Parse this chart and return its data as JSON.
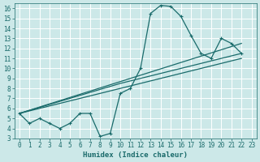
{
  "xlabel": "Humidex (Indice chaleur)",
  "bg_color": "#cce8e8",
  "grid_color": "#ffffff",
  "line_color": "#1a6b6b",
  "xlim": [
    -0.5,
    23.5
  ],
  "ylim": [
    3,
    16.5
  ],
  "xticks": [
    0,
    1,
    2,
    3,
    4,
    5,
    6,
    7,
    8,
    9,
    10,
    11,
    12,
    13,
    14,
    15,
    16,
    17,
    18,
    19,
    20,
    21,
    22,
    23
  ],
  "yticks": [
    3,
    4,
    5,
    6,
    7,
    8,
    9,
    10,
    11,
    12,
    13,
    14,
    15,
    16
  ],
  "curve_main_x": [
    0,
    1,
    2,
    3,
    4,
    5,
    6,
    7,
    8,
    9,
    10,
    11,
    12,
    13,
    14,
    15,
    16,
    17,
    18,
    19,
    20,
    21,
    22
  ],
  "curve_main_y": [
    5.5,
    4.5,
    5.0,
    4.5,
    4.0,
    4.5,
    5.5,
    5.5,
    3.2,
    3.5,
    7.5,
    8.0,
    10.0,
    15.5,
    16.3,
    16.2,
    15.2,
    13.3,
    11.5,
    11.0,
    13.0,
    12.5,
    11.5
  ],
  "curve_line1_x": [
    0,
    22
  ],
  "curve_line1_y": [
    5.5,
    12.5
  ],
  "curve_line2_x": [
    0,
    10,
    22
  ],
  "curve_line2_y": [
    5.5,
    8.5,
    11.5
  ],
  "curve_line3_x": [
    0,
    22
  ],
  "curve_line3_y": [
    5.5,
    11.0
  ]
}
